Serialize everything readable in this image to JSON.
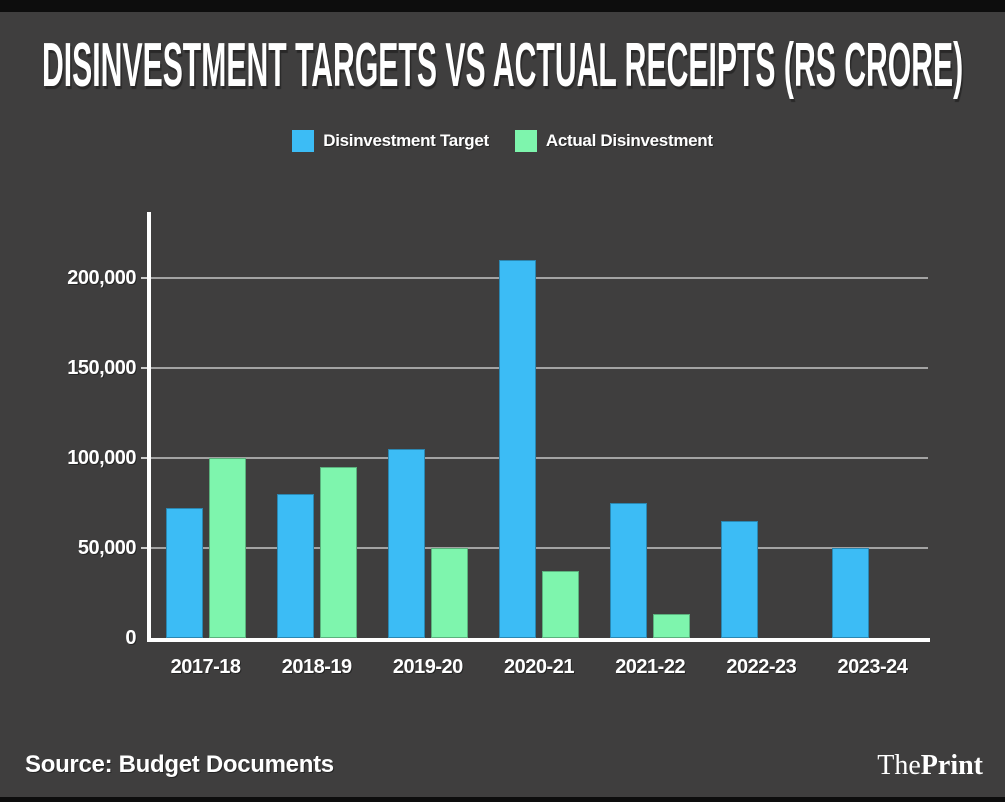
{
  "header": {
    "title": "DISINVESTMENT TARGETS VS ACTUAL RECEIPTS (RS CRORE)"
  },
  "legend": {
    "items": [
      {
        "label": "Disinvestment Target",
        "color": "#3cbcf5"
      },
      {
        "label": "Actual Disinvestment",
        "color": "#7ef5ad"
      }
    ]
  },
  "footer": {
    "source": "Source: Budget Documents",
    "logo_the": "The",
    "logo_print": "Print"
  },
  "colors": {
    "background": "#3f3e3e",
    "edge_strip": "#0d0d0d",
    "target_bar": "#3cbcf5",
    "actual_bar": "#7ef5ad",
    "gridline": "#a3a3a3",
    "axis": "#ffffff",
    "text": "#ffffff"
  },
  "chart_data": {
    "type": "bar",
    "title": "DISINVESTMENT TARGETS VS ACTUAL RECEIPTS (RS CRORE)",
    "xlabel": "",
    "ylabel": "",
    "categories": [
      "2017-18",
      "2018-19",
      "2019-20",
      "2020-21",
      "2021-22",
      "2022-23",
      "2023-24"
    ],
    "series": [
      {
        "name": "Disinvestment Target",
        "color": "#3cbcf5",
        "values": [
          72500,
          80000,
          105000,
          210000,
          75000,
          65000,
          50000
        ]
      },
      {
        "name": "Actual Disinvestment",
        "color": "#7ef5ad",
        "values": [
          100000,
          95000,
          50000,
          37000,
          13500,
          null,
          null
        ]
      }
    ],
    "ylim": [
      0,
      236000
    ],
    "yticks": [
      {
        "value": 0,
        "label": "0"
      },
      {
        "value": 50000,
        "label": "50,000"
      },
      {
        "value": 100000,
        "label": "100,000"
      },
      {
        "value": 150000,
        "label": "150,000"
      },
      {
        "value": 200000,
        "label": "200,000"
      }
    ],
    "grid": true,
    "legend_position": "top",
    "source": "Source: Budget Documents"
  }
}
